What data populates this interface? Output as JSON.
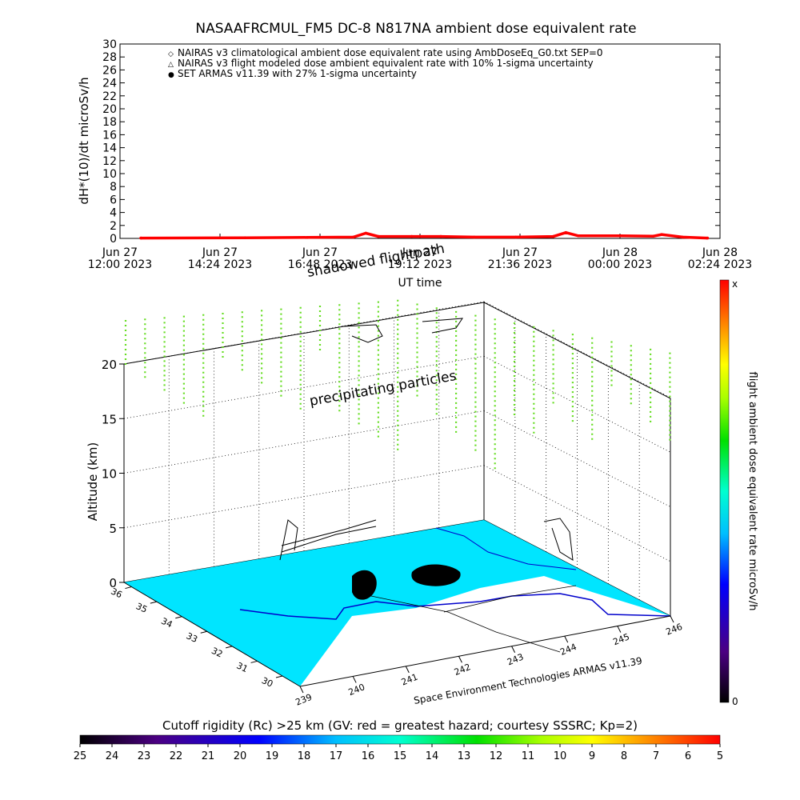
{
  "header": {
    "title": "NASAAFRCMUL_FM5 DC-8   N817NA ambient dose equivalent rate"
  },
  "legend": {
    "items": [
      {
        "symbol": "◇",
        "color": "#ff0000",
        "label": "NAIRAS v3 climatological ambient dose equivalent rate using AmbDoseEq_G0.txt SEP=0"
      },
      {
        "symbol": "△",
        "color": "#000000",
        "label": "NAIRAS v3 flight modeled dose ambient equivalent rate with 10% 1-sigma uncertainty"
      },
      {
        "symbol": "●",
        "color": "#0000ff",
        "label": "SET ARMAS v11.39 with 27% 1-sigma uncertainty"
      }
    ]
  },
  "chart_data": [
    {
      "type": "line",
      "ylabel": "dH*(10)/dt microSv/h",
      "xlabel": "UT time",
      "ylim": [
        0,
        30
      ],
      "yticks": [
        "0",
        "2",
        "4",
        "6",
        "8",
        "10",
        "12",
        "14",
        "16",
        "18",
        "20",
        "22",
        "24",
        "26",
        "28",
        "30"
      ],
      "xticks": [
        {
          "l1": "Jun 27",
          "l2": "12:00 2023"
        },
        {
          "l1": "Jun 27",
          "l2": "14:24 2023"
        },
        {
          "l1": "Jun 27",
          "l2": "16:48 2023"
        },
        {
          "l1": "Jun 27",
          "l2": "19:12 2023"
        },
        {
          "l1": "Jun 27",
          "l2": "21:36 2023"
        },
        {
          "l1": "Jun 28",
          "l2": "00:00 2023"
        },
        {
          "l1": "Jun 28",
          "l2": "02:24 2023"
        }
      ],
      "xlim_hours": [
        0,
        14.4
      ],
      "series": [
        {
          "color": "#ff0000",
          "x_hours": [
            0.5,
            3.0,
            4.5,
            5.6,
            5.9,
            6.2,
            7.0,
            7.7,
            8.5,
            9.5,
            10.4,
            10.7,
            11.0,
            12.0,
            12.8,
            13.0,
            13.5,
            14.1
          ],
          "values": [
            0.05,
            0.1,
            0.15,
            0.2,
            0.8,
            0.3,
            0.3,
            0.3,
            0.2,
            0.2,
            0.3,
            0.9,
            0.4,
            0.4,
            0.35,
            0.6,
            0.2,
            0.05
          ]
        }
      ]
    },
    {
      "type": "scatter",
      "zlabel": "Altitude (km)",
      "zticks": [
        "0",
        "5",
        "10",
        "15",
        "20"
      ],
      "xticks": [
        "240",
        "241",
        "242",
        "243",
        "244",
        "245",
        "246",
        "239"
      ],
      "yticks": [
        "30",
        "31",
        "32",
        "33",
        "34",
        "35",
        "36"
      ],
      "colorbar_label": "flight ambient dose equivalent rate microSv/h",
      "colorbar_top": "x",
      "colorbar_bottom": "0",
      "annotations": [
        "shadowed flightpath",
        "precipitating particles"
      ],
      "credit": "Space Environment Technologies ARMAS v11.39"
    }
  ],
  "colorbar": {
    "title": "Cutoff rigidity (Rc) >25 km (GV: red = greatest hazard; courtesy SSSRC; Kp=2)",
    "ticks": [
      "25",
      "24",
      "23",
      "22",
      "21",
      "20",
      "19",
      "18",
      "17",
      "16",
      "15",
      "14",
      "13",
      "12",
      "11",
      "10",
      "9",
      "8",
      "7",
      "6",
      "5"
    ]
  }
}
